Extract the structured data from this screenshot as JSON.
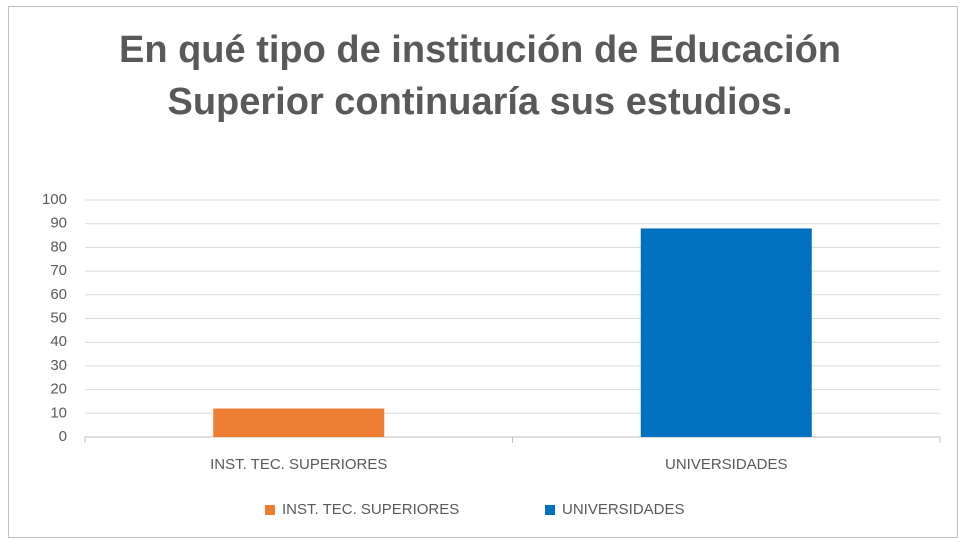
{
  "chart_data": {
    "type": "bar",
    "title": "En qué tipo de institución de Educación Superior continuaría sus estudios.",
    "categories": [
      "INST. TEC. SUPERIORES",
      "UNIVERSIDADES"
    ],
    "values": [
      12,
      88
    ],
    "colors": [
      "#ed7d31",
      "#0070c0"
    ],
    "ylim": [
      0,
      100
    ],
    "yticks": [
      0,
      10,
      20,
      30,
      40,
      50,
      60,
      70,
      80,
      90,
      100
    ],
    "grid": true,
    "legend": "bottom"
  }
}
